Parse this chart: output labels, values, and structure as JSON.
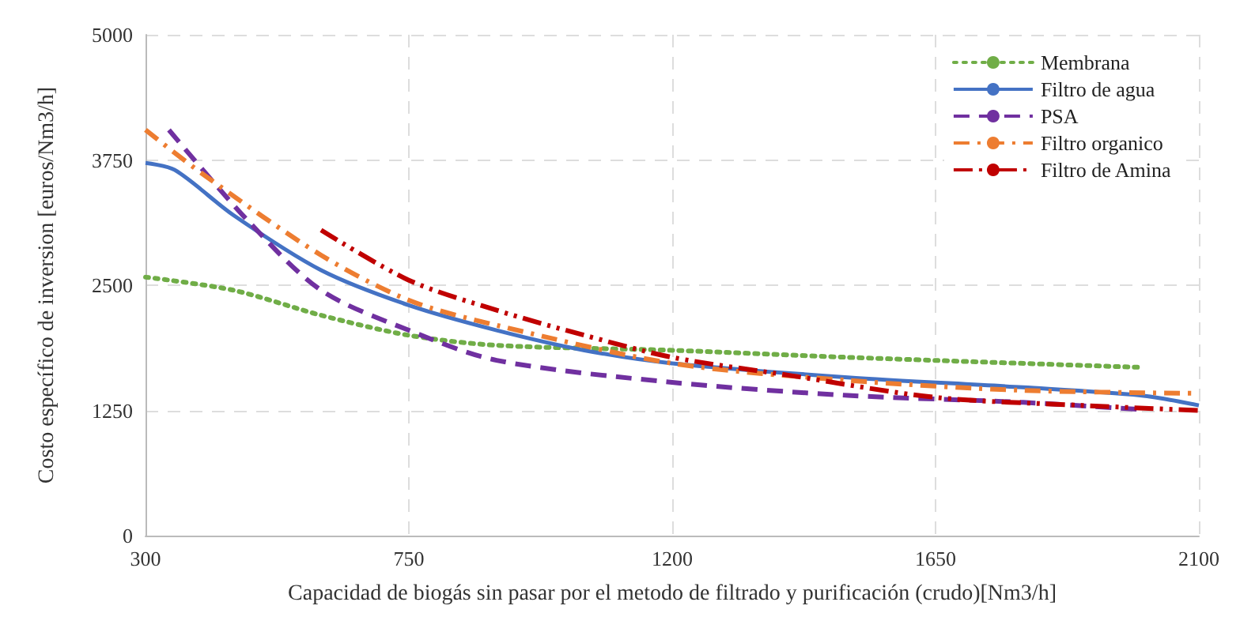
{
  "chart_data": {
    "type": "line",
    "xlabel": "Capacidad de biogás sin pasar por el metodo de filtrado y purificación (crudo)[Nm3/h]",
    "ylabel": "Costo específico de inversion [euros/Nm3/h]",
    "xlim": [
      300,
      2100
    ],
    "xticks": [
      300,
      750,
      1200,
      1650,
      2100
    ],
    "ylim": [
      0,
      5000
    ],
    "yticks": [
      0,
      1250,
      2500,
      3750,
      5000
    ],
    "grid": true,
    "legend": "top right",
    "marker": "none",
    "series": [
      {
        "name": "Membrana",
        "color": "#70ad47",
        "line_style": "dotted",
        "x": [
          300,
          450,
          600,
          750,
          900,
          1200,
          1500,
          2000
        ],
        "values": [
          2580,
          2450,
          2200,
          2000,
          1900,
          1850,
          1780,
          1680
        ]
      },
      {
        "name": "Filtro de agua",
        "color": "#4472c4",
        "line_style": "solid",
        "x": [
          300,
          350,
          450,
          600,
          750,
          900,
          1050,
          1200,
          1500,
          1800,
          2000,
          2100
        ],
        "values": [
          3720,
          3650,
          3200,
          2650,
          2300,
          2050,
          1850,
          1720,
          1580,
          1480,
          1400,
          1300
        ]
      },
      {
        "name": "PSA",
        "color": "#7030a0",
        "line_style": "dashed",
        "x": [
          340,
          474,
          600,
          750,
          900,
          1200,
          1500,
          1800,
          2000
        ],
        "values": [
          4050,
          3150,
          2450,
          2050,
          1750,
          1530,
          1400,
          1330,
          1260
        ]
      },
      {
        "name": "Filtro organico",
        "color": "#ed7d31",
        "line_style": "dashdot",
        "x": [
          300,
          400,
          600,
          750,
          900,
          1200,
          1500,
          1800,
          2100
        ],
        "values": [
          4050,
          3600,
          2800,
          2350,
          2100,
          1720,
          1550,
          1450,
          1420
        ]
      },
      {
        "name": "Filtro de Amina",
        "color": "#c00000",
        "line_style": "dashdotdot",
        "x": [
          600,
          750,
          900,
          1050,
          1200,
          1400,
          1650,
          1900,
          2100
        ],
        "values": [
          3050,
          2550,
          2250,
          2000,
          1780,
          1600,
          1380,
          1300,
          1250
        ]
      }
    ]
  }
}
